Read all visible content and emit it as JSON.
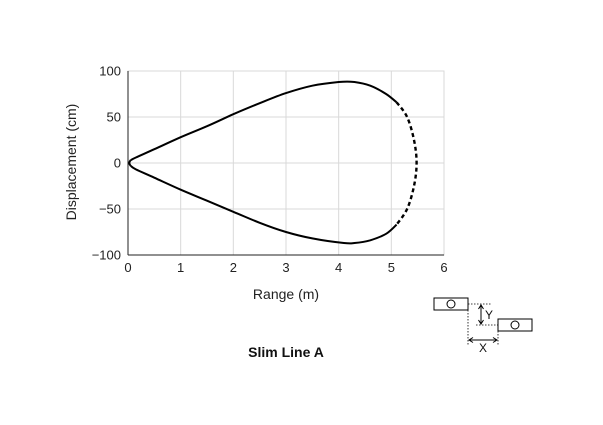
{
  "chart_data": {
    "type": "line",
    "title": "Slim Line A",
    "xlabel": "Range (m)",
    "ylabel": "Displacement (cm)",
    "xlim": [
      0,
      6
    ],
    "ylim": [
      -100,
      100
    ],
    "x_ticks": [
      "0",
      "1",
      "2",
      "3",
      "4",
      "5",
      "6"
    ],
    "y_ticks": [
      "100",
      "50",
      "0",
      "−50",
      "−100"
    ],
    "grid": true,
    "series": [
      {
        "style": "solid",
        "points": [
          [
            0.05,
            3
          ],
          [
            0.15,
            6
          ],
          [
            0.5,
            15
          ],
          [
            1,
            28
          ],
          [
            1.5,
            40
          ],
          [
            2,
            53
          ],
          [
            2.5,
            65
          ],
          [
            3,
            76
          ],
          [
            3.5,
            84
          ],
          [
            4,
            88
          ],
          [
            4.3,
            88
          ],
          [
            4.6,
            84
          ],
          [
            4.9,
            75
          ],
          [
            5.1,
            66
          ]
        ]
      },
      {
        "style": "dashed",
        "points": [
          [
            5.1,
            66
          ],
          [
            5.3,
            50
          ],
          [
            5.43,
            25
          ],
          [
            5.48,
            0
          ],
          [
            5.43,
            -25
          ],
          [
            5.3,
            -50
          ],
          [
            5.1,
            -67
          ]
        ]
      },
      {
        "style": "solid",
        "points": [
          [
            5.1,
            -67
          ],
          [
            4.9,
            -77
          ],
          [
            4.6,
            -84
          ],
          [
            4.3,
            -87
          ],
          [
            4.1,
            -87
          ],
          [
            3.5,
            -82
          ],
          [
            3,
            -75
          ],
          [
            2.5,
            -65
          ],
          [
            2,
            -53
          ],
          [
            1.5,
            -41
          ],
          [
            1,
            -29
          ],
          [
            0.5,
            -16
          ],
          [
            0.15,
            -7
          ],
          [
            0.05,
            -3
          ]
        ]
      }
    ]
  },
  "diagram": {
    "x_label": "X",
    "y_label": "Y"
  }
}
